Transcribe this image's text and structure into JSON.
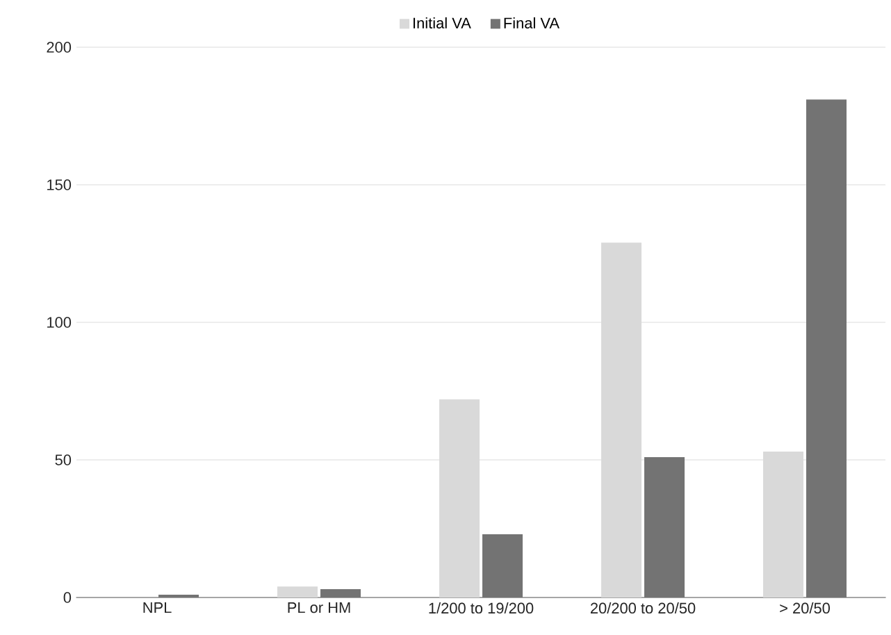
{
  "chart_data": {
    "type": "bar",
    "categories": [
      "NPL",
      "PL or HM",
      "1/200 to 19/200",
      "20/200 to 20/50",
      "> 20/50"
    ],
    "series": [
      {
        "name": "Initial VA",
        "color": "#d9d9d9",
        "values": [
          0,
          4,
          72,
          129,
          53
        ]
      },
      {
        "name": "Final VA",
        "color": "#737373",
        "values": [
          1,
          3,
          23,
          51,
          181
        ]
      }
    ],
    "ylim": [
      0,
      200
    ],
    "yticks": [
      0,
      50,
      100,
      150,
      200
    ],
    "grid": "y",
    "legend": "top"
  }
}
